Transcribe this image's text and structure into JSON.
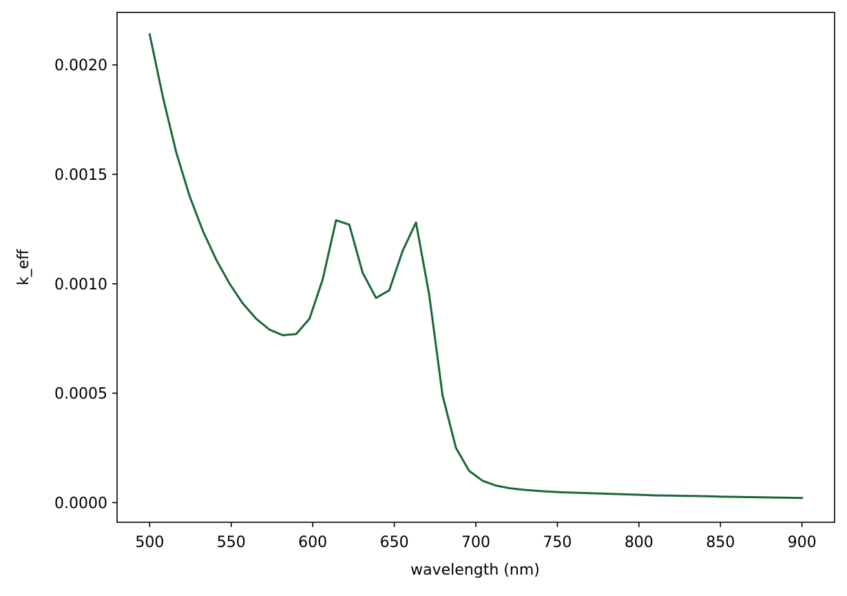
{
  "chart_data": {
    "type": "line",
    "title": "",
    "xlabel": "wavelength (nm)",
    "ylabel": "k_eff",
    "xlim": [
      480,
      920
    ],
    "ylim": [
      -9e-05,
      0.00224
    ],
    "xticks": [
      500,
      550,
      600,
      650,
      700,
      750,
      800,
      850,
      900
    ],
    "xtick_labels": [
      "500",
      "550",
      "600",
      "650",
      "700",
      "750",
      "800",
      "850",
      "900"
    ],
    "yticks": [
      0.0,
      0.0005,
      0.001,
      0.0015,
      0.002
    ],
    "ytick_labels": [
      "0.0000",
      "0.0005",
      "0.0010",
      "0.0015",
      "0.0020"
    ],
    "grid": false,
    "legend": "none",
    "series": [
      {
        "color": "#1a6637",
        "x": [
          500,
          508.2,
          516.3,
          524.5,
          532.7,
          540.8,
          549,
          557.1,
          565.3,
          573.5,
          581.6,
          589.8,
          598,
          606.1,
          614.3,
          622.4,
          630.6,
          638.8,
          646.9,
          655.1,
          663.3,
          671.4,
          679.6,
          687.8,
          695.9,
          704.1,
          712.2,
          720.4,
          728.6,
          736.7,
          744.9,
          753.1,
          761.2,
          769.4,
          777.6,
          785.7,
          793.9,
          802,
          810.2,
          818.4,
          826.5,
          834.7,
          842.9,
          851,
          859.2,
          867.3,
          875.5,
          883.7,
          891.8,
          900
        ],
        "y": [
          0.00214,
          0.00185,
          0.0016,
          0.0014,
          0.00124,
          0.00111,
          0.001,
          0.00091,
          0.00084,
          0.00079,
          0.000765,
          0.00077,
          0.00084,
          0.00102,
          0.00129,
          0.00127,
          0.00105,
          0.000935,
          0.00097,
          0.00115,
          0.00128,
          0.00095,
          0.00049,
          0.00025,
          0.000145,
          0.0001,
          7.8e-05,
          6.6e-05,
          5.9e-05,
          5.4e-05,
          5e-05,
          4.7e-05,
          4.5e-05,
          4.3e-05,
          4.1e-05,
          3.9e-05,
          3.7e-05,
          3.5e-05,
          3.3e-05,
          3.2e-05,
          3.1e-05,
          3e-05,
          2.9e-05,
          2.7e-05,
          2.6e-05,
          2.5e-05,
          2.4e-05,
          2.3e-05,
          2.2e-05,
          2.1e-05
        ]
      }
    ]
  }
}
